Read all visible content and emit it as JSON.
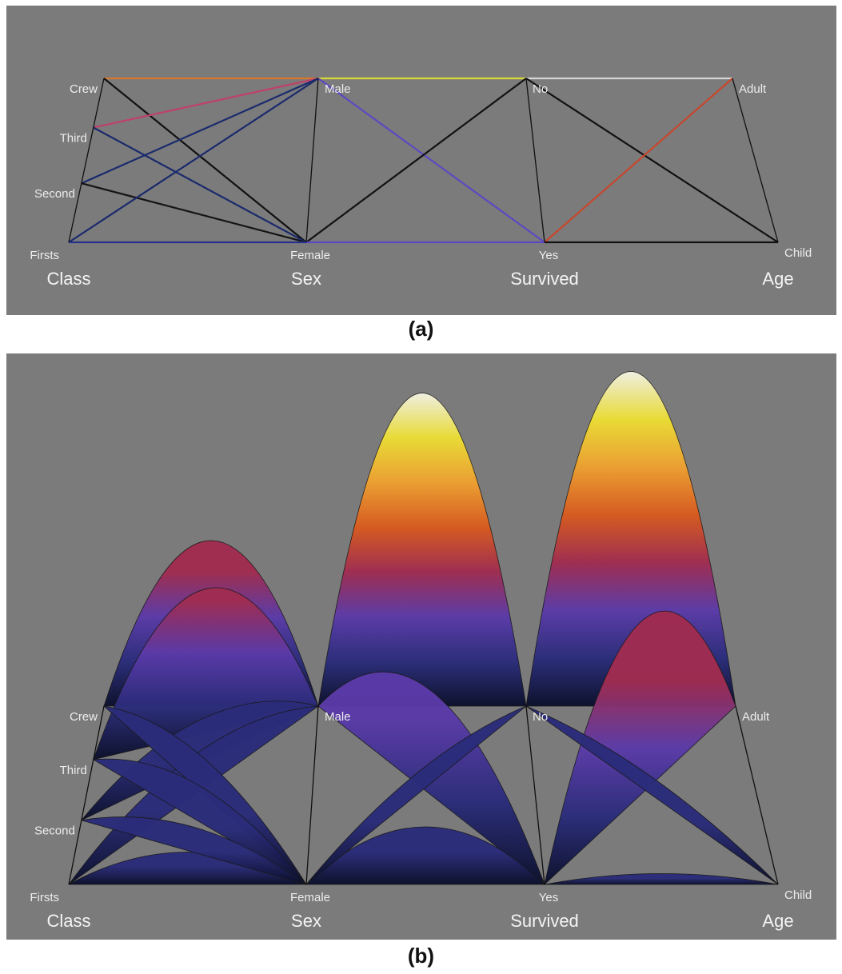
{
  "chart_data": [
    {
      "type": "parallel_sets",
      "panel": "a",
      "caption": "(a)",
      "style": "straight lines",
      "axes": [
        {
          "title": "Class",
          "categories_top_to_bottom": [
            "Crew",
            "Third",
            "Second",
            "Firsts"
          ]
        },
        {
          "title": "Sex",
          "categories_top_to_bottom": [
            "Male",
            "Female"
          ]
        },
        {
          "title": "Survived",
          "categories_top_to_bottom": [
            "No",
            "Yes"
          ]
        },
        {
          "title": "Age",
          "categories_top_to_bottom": [
            "Adult",
            "Child"
          ]
        }
      ],
      "links": [
        {
          "from": "Crew",
          "to": "Male",
          "color": "#d8782c"
        },
        {
          "from": "Crew",
          "to": "Female",
          "color": "#111111"
        },
        {
          "from": "Third",
          "to": "Male",
          "color": "#c0406a"
        },
        {
          "from": "Third",
          "to": "Female",
          "color": "#1a2a6c"
        },
        {
          "from": "Second",
          "to": "Male",
          "color": "#1a2a6c"
        },
        {
          "from": "Second",
          "to": "Female",
          "color": "#151515"
        },
        {
          "from": "Firsts",
          "to": "Male",
          "color": "#1a2a6c"
        },
        {
          "from": "Firsts",
          "to": "Female",
          "color": "#27308a"
        },
        {
          "from": "Male",
          "to": "No",
          "color": "#d9d93a"
        },
        {
          "from": "Male",
          "to": "Yes",
          "color": "#5d48c2"
        },
        {
          "from": "Female",
          "to": "No",
          "color": "#121212"
        },
        {
          "from": "Female",
          "to": "Yes",
          "color": "#5d48c2"
        },
        {
          "from": "No",
          "to": "Adult",
          "color": "#d6d6d6"
        },
        {
          "from": "No",
          "to": "Child",
          "color": "#111111"
        },
        {
          "from": "Yes",
          "to": "Adult",
          "color": "#c8462c"
        },
        {
          "from": "Yes",
          "to": "Child",
          "color": "#111111"
        }
      ]
    },
    {
      "type": "parallel_sets",
      "panel": "b",
      "caption": "(b)",
      "style": "curved bundles, height encodes frequency",
      "axes": [
        {
          "title": "Class",
          "categories_top_to_bottom": [
            "Crew",
            "Third",
            "Second",
            "Firsts"
          ]
        },
        {
          "title": "Sex",
          "categories_top_to_bottom": [
            "Male",
            "Female"
          ]
        },
        {
          "title": "Survived",
          "categories_top_to_bottom": [
            "No",
            "Yes"
          ]
        },
        {
          "title": "Age",
          "categories_top_to_bottom": [
            "Adult",
            "Child"
          ]
        }
      ],
      "color_scale": [
        "#0a0f2a",
        "#2a2c7a",
        "#5a3aa8",
        "#a02c50",
        "#d85a1e",
        "#eea030",
        "#ecde34",
        "#f2f2e4"
      ],
      "links": [
        {
          "from": "Crew",
          "to": "Male",
          "height": 0.46
        },
        {
          "from": "Crew",
          "to": "Female",
          "height": 0.1
        },
        {
          "from": "Third",
          "to": "Male",
          "height": 0.4
        },
        {
          "from": "Third",
          "to": "Female",
          "height": 0.1
        },
        {
          "from": "Second",
          "to": "Male",
          "height": 0.12
        },
        {
          "from": "Second",
          "to": "Female",
          "height": 0.07
        },
        {
          "from": "Firsts",
          "to": "Male",
          "height": 0.11
        },
        {
          "from": "Firsts",
          "to": "Female",
          "height": 0.09
        },
        {
          "from": "Male",
          "to": "No",
          "height": 0.87
        },
        {
          "from": "Male",
          "to": "Yes",
          "height": 0.29
        },
        {
          "from": "Female",
          "to": "No",
          "height": 0.06
        },
        {
          "from": "Female",
          "to": "Yes",
          "height": 0.16
        },
        {
          "from": "No",
          "to": "Adult",
          "height": 0.93
        },
        {
          "from": "No",
          "to": "Child",
          "height": 0.05
        },
        {
          "from": "Yes",
          "to": "Adult",
          "height": 0.48
        },
        {
          "from": "Yes",
          "to": "Child",
          "height": 0.03
        }
      ]
    }
  ]
}
